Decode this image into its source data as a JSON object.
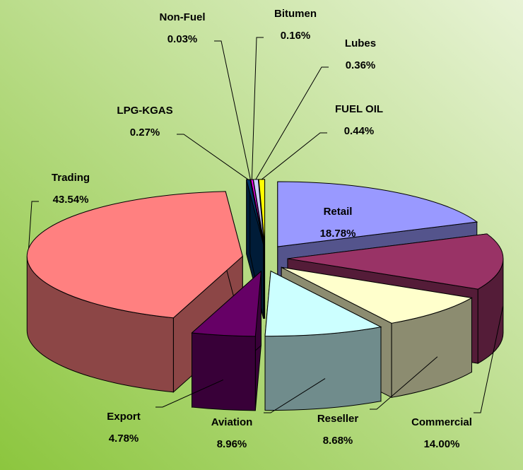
{
  "chart_data": {
    "type": "pie",
    "categories": [
      "Retail",
      "Commercial",
      "Reseller",
      "Aviation",
      "Export",
      "Trading",
      "LPG-KGAS",
      "Non-Fuel",
      "Bitumen",
      "Lubes",
      "FUEL OIL"
    ],
    "values": [
      18.78,
      14.0,
      8.68,
      8.96,
      4.78,
      43.54,
      0.27,
      0.03,
      0.16,
      0.36,
      0.44
    ],
    "value_labels": [
      "18.78%",
      "14.00%",
      "8.68%",
      "8.96%",
      "4.78%",
      "43.54%",
      "0.27%",
      "0.03%",
      "0.16%",
      "0.36%",
      "0.44%"
    ],
    "colors": [
      "#9999ff",
      "#993366",
      "#ffffcc",
      "#ccffff",
      "#660066",
      "#ff8080",
      "#003366",
      "#0066cc",
      "#ff00ff",
      "#ccccff",
      "#ffff00"
    ]
  }
}
